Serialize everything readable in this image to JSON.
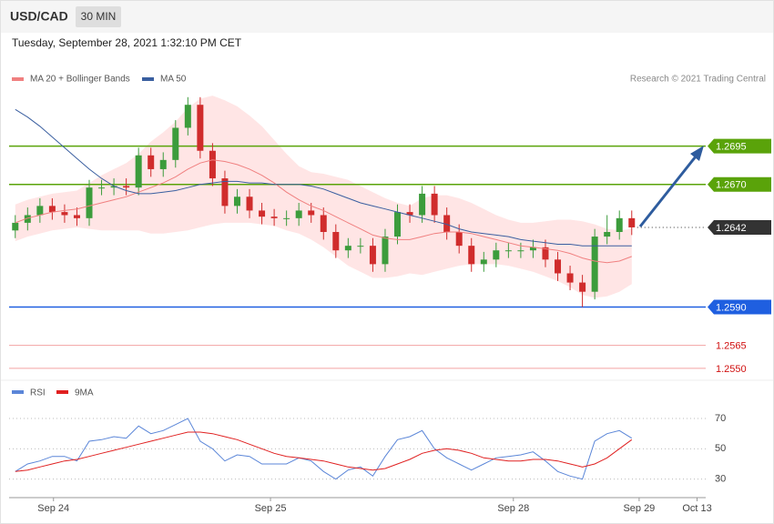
{
  "header": {
    "symbol": "USD/CAD",
    "timeframe": "30 MIN",
    "timestamp": "Tuesday, September 28, 2021 1:32:10 PM CET"
  },
  "chart_data": [
    {
      "type": "candlestick",
      "annotation": "Research © 2021 Trading Central",
      "x": [
        0,
        1,
        2,
        3,
        4,
        5,
        6,
        7,
        8,
        9,
        10,
        11,
        12,
        13,
        14,
        15,
        16,
        17,
        18,
        19,
        20,
        21,
        22,
        23,
        24,
        25,
        26,
        27,
        28,
        29,
        30,
        31,
        32,
        33,
        34,
        35,
        36,
        37,
        38,
        39,
        40,
        41,
        42,
        43,
        44,
        45,
        46,
        47,
        48,
        49,
        50
      ],
      "xlim": [
        -0.5,
        56
      ],
      "ylim": [
        1.2544,
        1.2734
      ],
      "up_color": "#3c9c3c",
      "down_color": "#d02c2c",
      "open": [
        1.264,
        1.2645,
        1.265,
        1.2656,
        1.2652,
        1.265,
        1.2648,
        1.2668,
        1.2668,
        1.2669,
        1.2668,
        1.2689,
        1.268,
        1.2686,
        1.2707,
        1.2722,
        1.2692,
        1.2674,
        1.2656,
        1.2662,
        1.2653,
        1.2649,
        1.2648,
        1.2648,
        1.2653,
        1.265,
        1.2639,
        1.2627,
        1.263,
        1.263,
        1.2618,
        1.2636,
        1.2652,
        1.265,
        1.2664,
        1.265,
        1.2639,
        1.263,
        1.2618,
        1.2621,
        1.2627,
        1.2627,
        1.2627,
        1.2629,
        1.2621,
        1.2612,
        1.2606,
        1.26,
        1.2636,
        1.2639,
        1.2648
      ],
      "high": [
        1.265,
        1.2655,
        1.2661,
        1.2661,
        1.2657,
        1.2655,
        1.2673,
        1.2673,
        1.2674,
        1.2674,
        1.2694,
        1.2694,
        1.2691,
        1.2712,
        1.2727,
        1.2727,
        1.2697,
        1.2679,
        1.2667,
        1.2667,
        1.2658,
        1.2654,
        1.2653,
        1.2658,
        1.2658,
        1.2655,
        1.2644,
        1.2635,
        1.2635,
        1.2635,
        1.2641,
        1.2657,
        1.2657,
        1.2669,
        1.2669,
        1.2655,
        1.2644,
        1.2635,
        1.2626,
        1.2632,
        1.2632,
        1.2632,
        1.2634,
        1.2634,
        1.2626,
        1.2617,
        1.2611,
        1.2641,
        1.265,
        1.2653,
        1.2653
      ],
      "low": [
        1.2635,
        1.264,
        1.2645,
        1.2647,
        1.2645,
        1.2643,
        1.2643,
        1.2663,
        1.2663,
        1.2663,
        1.2663,
        1.2675,
        1.2675,
        1.2681,
        1.2702,
        1.2687,
        1.2669,
        1.2651,
        1.2651,
        1.2648,
        1.2644,
        1.2643,
        1.2643,
        1.2643,
        1.2645,
        1.2634,
        1.2622,
        1.2622,
        1.2625,
        1.2613,
        1.2613,
        1.2631,
        1.2645,
        1.2645,
        1.2645,
        1.2634,
        1.2625,
        1.2613,
        1.2613,
        1.2616,
        1.2622,
        1.2622,
        1.2622,
        1.2616,
        1.2607,
        1.2601,
        1.259,
        1.2595,
        1.2631,
        1.2634,
        1.2637
      ],
      "close": [
        1.2645,
        1.265,
        1.2656,
        1.2652,
        1.265,
        1.2648,
        1.2668,
        1.2668,
        1.2669,
        1.2668,
        1.2689,
        1.268,
        1.2686,
        1.2707,
        1.2722,
        1.2692,
        1.2674,
        1.2656,
        1.2662,
        1.2653,
        1.2649,
        1.2648,
        1.2648,
        1.2653,
        1.265,
        1.2639,
        1.2627,
        1.263,
        1.263,
        1.2618,
        1.2636,
        1.2652,
        1.265,
        1.2664,
        1.265,
        1.2639,
        1.263,
        1.2618,
        1.2621,
        1.2627,
        1.2627,
        1.2627,
        1.2629,
        1.2621,
        1.2612,
        1.2606,
        1.26,
        1.2636,
        1.2639,
        1.2648,
        1.2642
      ],
      "series": [
        {
          "name": "MA 20 + Bollinger Bands",
          "color": "#f08080",
          "values": [
            1.2645,
            1.2648,
            1.265,
            1.2652,
            1.2653,
            1.2654,
            1.2656,
            1.2658,
            1.266,
            1.2662,
            1.2665,
            1.2668,
            1.2671,
            1.2675,
            1.268,
            1.2684,
            1.2686,
            1.2685,
            1.2683,
            1.268,
            1.2676,
            1.2671,
            1.2665,
            1.266,
            1.2656,
            1.2653,
            1.2649,
            1.2645,
            1.2641,
            1.2637,
            1.2635,
            1.2634,
            1.2634,
            1.2636,
            1.2638,
            1.2639,
            1.2639,
            1.2638,
            1.2636,
            1.2634,
            1.2632,
            1.263,
            1.2629,
            1.2628,
            1.2627,
            1.2625,
            1.2622,
            1.262,
            1.2619,
            1.262,
            1.2623
          ],
          "upper": [
            1.2657,
            1.266,
            1.2662,
            1.2664,
            1.2665,
            1.2666,
            1.2671,
            1.2676,
            1.268,
            1.2684,
            1.269,
            1.2698,
            1.2704,
            1.2711,
            1.272,
            1.2726,
            1.2728,
            1.2725,
            1.2721,
            1.2715,
            1.2708,
            1.2699,
            1.269,
            1.2682,
            1.2678,
            1.2677,
            1.2675,
            1.2673,
            1.2669,
            1.2665,
            1.2661,
            1.2658,
            1.2656,
            1.2661,
            1.2663,
            1.2663,
            1.2661,
            1.2658,
            1.2654,
            1.265,
            1.2647,
            1.2645,
            1.2645,
            1.2646,
            1.2647,
            1.2647,
            1.2646,
            1.2644,
            1.2641,
            1.264,
            1.2641
          ],
          "lower": [
            1.2633,
            1.2636,
            1.2638,
            1.264,
            1.2641,
            1.2642,
            1.2641,
            1.264,
            1.264,
            1.264,
            1.264,
            1.2638,
            1.2638,
            1.2639,
            1.264,
            1.2642,
            1.2644,
            1.2645,
            1.2645,
            1.2645,
            1.2644,
            1.2643,
            1.264,
            1.2638,
            1.2634,
            1.2629,
            1.2623,
            1.2617,
            1.2613,
            1.2609,
            1.2609,
            1.261,
            1.2612,
            1.2611,
            1.2613,
            1.2615,
            1.2617,
            1.2618,
            1.2618,
            1.2618,
            1.2617,
            1.2615,
            1.2613,
            1.261,
            1.2607,
            1.2603,
            1.2598,
            1.2596,
            1.2597,
            1.26,
            1.2605
          ],
          "band_color": "#ffdede"
        },
        {
          "name": "MA 50",
          "color": "#3a5fa0",
          "values": [
            1.2719,
            1.2714,
            1.2708,
            1.2701,
            1.2694,
            1.2687,
            1.268,
            1.2674,
            1.2669,
            1.2666,
            1.2664,
            1.2664,
            1.2665,
            1.2666,
            1.2668,
            1.267,
            1.2671,
            1.2672,
            1.2672,
            1.2671,
            1.2671,
            1.267,
            1.267,
            1.267,
            1.2669,
            1.2667,
            1.2664,
            1.2661,
            1.2658,
            1.2656,
            1.2654,
            1.2652,
            1.265,
            1.2648,
            1.2646,
            1.2644,
            1.2641,
            1.2639,
            1.2638,
            1.2637,
            1.2636,
            1.2634,
            1.2633,
            1.2632,
            1.2631,
            1.2631,
            1.263,
            1.263,
            1.263,
            1.263,
            1.263
          ]
        }
      ],
      "levels": [
        {
          "value": 1.2695,
          "color": "#5aa30a",
          "boxed": true
        },
        {
          "value": 1.267,
          "label": "1.2670",
          "color": "#5aa30a",
          "boxed": true
        },
        {
          "value": 1.2642,
          "color": "#333333",
          "boxed": true,
          "dotted": true
        },
        {
          "value": 1.259,
          "label": "1.2590",
          "color": "#1f5fe0",
          "boxed": true
        },
        {
          "value": 1.2565,
          "color": "#f3a3a3",
          "text_color": "#d01010",
          "boxed": false
        },
        {
          "value": 1.255,
          "label": "1.2550",
          "color": "#f3a3a3",
          "text_color": "#d01010",
          "boxed": false
        }
      ]
    },
    {
      "type": "line",
      "x": [
        0,
        1,
        2,
        3,
        4,
        5,
        6,
        7,
        8,
        9,
        10,
        11,
        12,
        13,
        14,
        15,
        16,
        17,
        18,
        19,
        20,
        21,
        22,
        23,
        24,
        25,
        26,
        27,
        28,
        29,
        30,
        31,
        32,
        33,
        34,
        35,
        36,
        37,
        38,
        39,
        40,
        41,
        42,
        43,
        44,
        45,
        46,
        47,
        48,
        49,
        50
      ],
      "xlim": [
        -0.5,
        56
      ],
      "xticks": [
        {
          "value": 3.1,
          "label": "Sep 24"
        },
        {
          "value": 20.7,
          "label": "Sep 25"
        },
        {
          "value": 40.4,
          "label": "Sep 28"
        },
        {
          "value": 50.6,
          "label": "Sep 29"
        },
        {
          "value": 55.3,
          "label": "Oct 13"
        }
      ],
      "ylim": [
        19,
        82
      ],
      "yticks": [
        30,
        50,
        70
      ],
      "grid": true,
      "series": [
        {
          "name": "RSI",
          "color": "#5b86d8",
          "values": [
            35,
            40,
            42,
            45,
            45,
            42,
            55,
            56,
            58,
            57,
            65,
            60,
            62,
            66,
            70,
            55,
            50,
            42,
            46,
            45,
            40,
            40,
            40,
            44,
            42,
            35,
            30,
            36,
            38,
            32,
            45,
            56,
            58,
            62,
            50,
            44,
            40,
            36,
            40,
            44,
            45,
            46,
            48,
            42,
            35,
            32,
            30,
            55,
            60,
            62,
            57
          ]
        },
        {
          "name": "9MA",
          "color": "#e02020",
          "values": [
            35,
            36,
            38,
            40,
            42,
            43,
            45,
            47,
            49,
            51,
            53,
            55,
            57,
            59,
            61,
            61,
            60,
            58,
            56,
            53,
            50,
            47,
            45,
            44,
            43,
            42,
            40,
            38,
            37,
            36,
            37,
            40,
            43,
            47,
            49,
            50,
            49,
            47,
            44,
            43,
            42,
            42,
            43,
            43,
            42,
            40,
            38,
            40,
            44,
            50,
            56
          ]
        }
      ]
    }
  ]
}
